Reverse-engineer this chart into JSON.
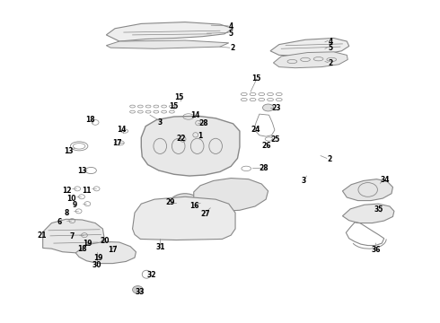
{
  "bg_color": "#ffffff",
  "line_color": "#888888",
  "text_color": "#000000",
  "fig_width": 4.9,
  "fig_height": 3.6,
  "dpi": 100
}
